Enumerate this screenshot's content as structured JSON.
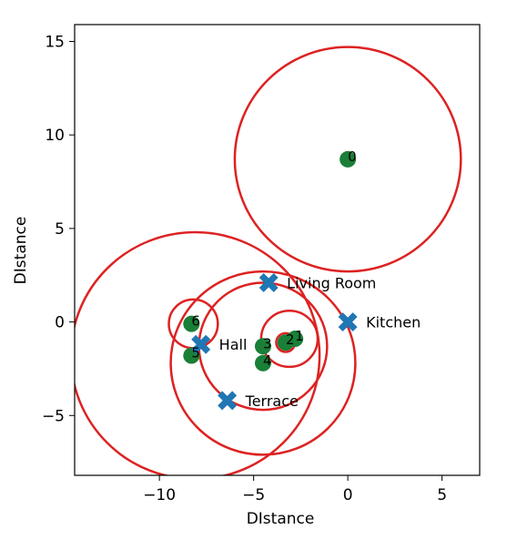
{
  "chart_data": {
    "type": "scatter",
    "xlabel": "DIstance",
    "ylabel": "DIstance",
    "xlim": [
      -14.5,
      7
    ],
    "ylim": [
      -8.2,
      15.9
    ],
    "xticks": [
      -10,
      -5,
      0,
      5
    ],
    "yticks": [
      -5,
      0,
      5,
      10,
      15
    ],
    "grid": false,
    "colors": {
      "circle": "#dd2222",
      "point": "#1a7f37",
      "cross": "#1f77b4",
      "axes": "#000000"
    },
    "circles": [
      {
        "cx": 0,
        "cy": 8.7,
        "r": 6.0
      },
      {
        "cx": -8.1,
        "cy": -1.8,
        "r": 6.6
      },
      {
        "cx": -4.5,
        "cy": -2.2,
        "r": 4.9
      },
      {
        "cx": -4.5,
        "cy": -1.3,
        "r": 3.4
      },
      {
        "cx": -8.2,
        "cy": -0.1,
        "r": 1.3
      },
      {
        "cx": -3.1,
        "cy": -0.9,
        "r": 1.5
      },
      {
        "cx": -3.3,
        "cy": -1.1,
        "r": 0.5
      }
    ],
    "points": [
      {
        "label": "0",
        "x": 0,
        "y": 8.7
      },
      {
        "label": "1",
        "x": -2.8,
        "y": -0.9
      },
      {
        "label": "2",
        "x": -3.3,
        "y": -1.1
      },
      {
        "label": "3",
        "x": -4.5,
        "y": -1.3
      },
      {
        "label": "4",
        "x": -4.5,
        "y": -2.2
      },
      {
        "label": "5",
        "x": -8.3,
        "y": -1.8
      },
      {
        "label": "6",
        "x": -8.3,
        "y": -0.1
      }
    ],
    "rooms": [
      {
        "label": "Living Room",
        "x": -4.2,
        "y": 2.1
      },
      {
        "label": "Kitchen",
        "x": 0,
        "y": 0
      },
      {
        "label": "Hall",
        "x": -7.8,
        "y": -1.2
      },
      {
        "label": "Terrace",
        "x": -6.4,
        "y": -4.2
      }
    ]
  }
}
